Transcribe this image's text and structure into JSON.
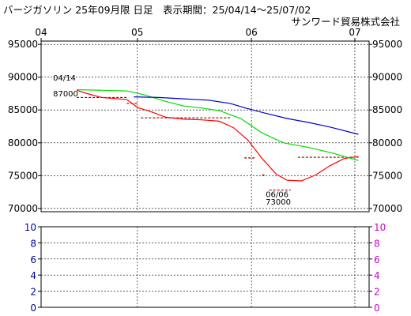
{
  "header": {
    "title": "バージガソリン 25年09月限 日足　表示期間：25/04/14〜25/07/02",
    "company": "サンワード貿易株式会社"
  },
  "chart_data": [
    {
      "type": "line",
      "title": "",
      "x_range": [
        "2025-04-04",
        "2025-07-05"
      ],
      "x_ticks": [
        {
          "label": "04",
          "date": "2025-04-04"
        },
        {
          "label": "05",
          "date": "2025-05-01"
        },
        {
          "label": "06",
          "date": "2025-06-02"
        },
        {
          "label": "07",
          "date": "2025-07-01"
        }
      ],
      "ylim": [
        69500,
        95500
      ],
      "y_ticks": [
        70000,
        75000,
        80000,
        85000,
        90000,
        95000
      ],
      "grid": true,
      "series": [
        {
          "color": "#ff0000",
          "points": [
            [
              "2025-04-14",
              88000
            ],
            [
              "2025-04-17",
              87500
            ],
            [
              "2025-04-21",
              86900
            ],
            [
              "2025-04-28",
              86600
            ],
            [
              "2025-05-01",
              85400
            ],
            [
              "2025-05-05",
              84700
            ],
            [
              "2025-05-09",
              83900
            ],
            [
              "2025-05-14",
              83600
            ],
            [
              "2025-05-19",
              83500
            ],
            [
              "2025-05-24",
              83300
            ],
            [
              "2025-05-28",
              82300
            ],
            [
              "2025-06-01",
              80400
            ],
            [
              "2025-06-05",
              77600
            ],
            [
              "2025-06-09",
              75200
            ],
            [
              "2025-06-12",
              74300
            ],
            [
              "2025-06-16",
              74200
            ],
            [
              "2025-06-20",
              75100
            ],
            [
              "2025-06-24",
              76500
            ],
            [
              "2025-06-28",
              77600
            ],
            [
              "2025-07-02",
              77900
            ]
          ]
        },
        {
          "color": "#00dd00",
          "points": [
            [
              "2025-04-14",
              88100
            ],
            [
              "2025-04-21",
              88000
            ],
            [
              "2025-04-28",
              87900
            ],
            [
              "2025-05-03",
              87300
            ],
            [
              "2025-05-09",
              86300
            ],
            [
              "2025-05-14",
              85600
            ],
            [
              "2025-05-19",
              85300
            ],
            [
              "2025-05-24",
              84900
            ],
            [
              "2025-05-30",
              83700
            ],
            [
              "2025-06-05",
              81500
            ],
            [
              "2025-06-11",
              80000
            ],
            [
              "2025-06-18",
              79300
            ],
            [
              "2025-06-25",
              78400
            ],
            [
              "2025-07-02",
              77300
            ]
          ]
        },
        {
          "color": "#0000cc",
          "points": [
            [
              "2025-04-30",
              87000
            ],
            [
              "2025-05-07",
              86900
            ],
            [
              "2025-05-14",
              86700
            ],
            [
              "2025-05-21",
              86500
            ],
            [
              "2025-05-27",
              86000
            ],
            [
              "2025-06-01",
              85200
            ],
            [
              "2025-06-06",
              84500
            ],
            [
              "2025-06-12",
              83700
            ],
            [
              "2025-06-18",
              83100
            ],
            [
              "2025-06-24",
              82400
            ],
            [
              "2025-07-02",
              81300
            ]
          ]
        }
      ],
      "reference_dashes": [
        {
          "from": "2025-04-14",
          "to": "2025-04-28",
          "value": 86900
        },
        {
          "from": "2025-04-28",
          "to": "2025-05-01",
          "value": 86000
        },
        {
          "from": "2025-05-02",
          "to": "2025-05-27",
          "value": 83800
        },
        {
          "from": "2025-05-31",
          "to": "2025-06-03",
          "value": 77700
        },
        {
          "from": "2025-06-05",
          "to": "2025-06-06",
          "value": 75100
        },
        {
          "from": "2025-06-07",
          "to": "2025-06-13",
          "value": 72800
        },
        {
          "from": "2025-06-15",
          "to": "2025-07-02",
          "value": 77800
        }
      ],
      "annotations": [
        {
          "date": "2025-04-14",
          "label": "04/14",
          "value": "87000"
        },
        {
          "date": "2025-06-06",
          "label": "06/06",
          "value": "73000"
        }
      ]
    },
    {
      "type": "line",
      "title": "",
      "x_range": [
        "2025-04-04",
        "2025-07-05"
      ],
      "ylim": [
        0,
        10
      ],
      "y_ticks": [
        0,
        2,
        4,
        6,
        8,
        10
      ],
      "grid": true,
      "left_tick_color": "#0000aa",
      "right_tick_color": "#cc00cc",
      "series": []
    }
  ]
}
